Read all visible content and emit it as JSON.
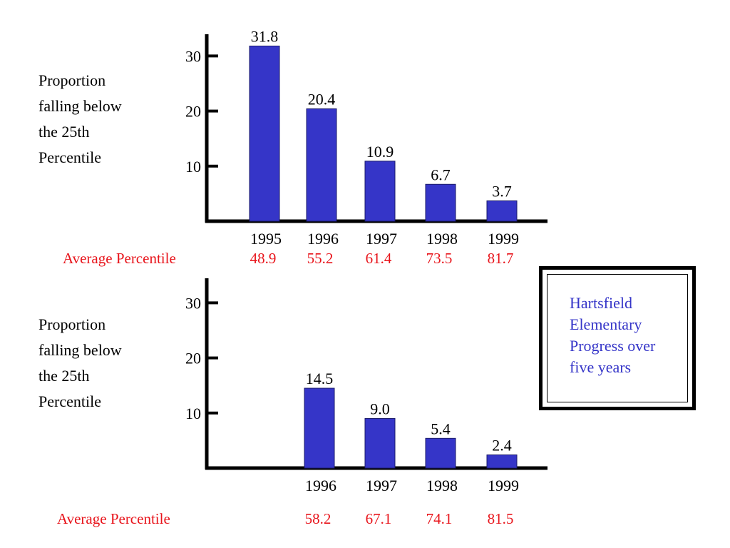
{
  "title_box": {
    "text": "Hartsfield\nElementary\nProgress over\nfive years"
  },
  "colors": {
    "bar": "#3535c8",
    "bar_stroke": "#1a1a6a",
    "axis": "#000000",
    "avg": "#e8141b",
    "title": "#3535c8"
  },
  "chart_data": [
    {
      "type": "bar",
      "ylabel": "Proportion\nfalling below\nthe 25th\nPercentile",
      "categories": [
        "1995",
        "1996",
        "1997",
        "1998",
        "1999"
      ],
      "values": [
        31.8,
        20.4,
        10.9,
        6.7,
        3.7
      ],
      "data_labels": [
        "31.8",
        "20.4",
        "10.9",
        "6.7",
        "3.7"
      ],
      "yticks": [
        "10",
        "20",
        "30"
      ],
      "ylim": [
        0,
        34
      ],
      "grid": false,
      "average_percentile": {
        "label": "Average Percentile",
        "values": [
          "48.9",
          "55.2",
          "61.4",
          "73.5",
          "81.7"
        ]
      }
    },
    {
      "type": "bar",
      "ylabel": "Proportion\nfalling below\nthe 25th\nPercentile",
      "categories": [
        "1996",
        "1997",
        "1998",
        "1999"
      ],
      "values": [
        14.5,
        9.0,
        5.4,
        2.4
      ],
      "data_labels": [
        "14.5",
        "9.0",
        "5.4",
        "2.4"
      ],
      "yticks": [
        "10",
        "20",
        "30"
      ],
      "ylim": [
        0,
        34
      ],
      "grid": false,
      "average_percentile": {
        "label": "Average Percentile",
        "values": [
          "58.2",
          "67.1",
          "74.1",
          "81.5"
        ]
      }
    }
  ]
}
